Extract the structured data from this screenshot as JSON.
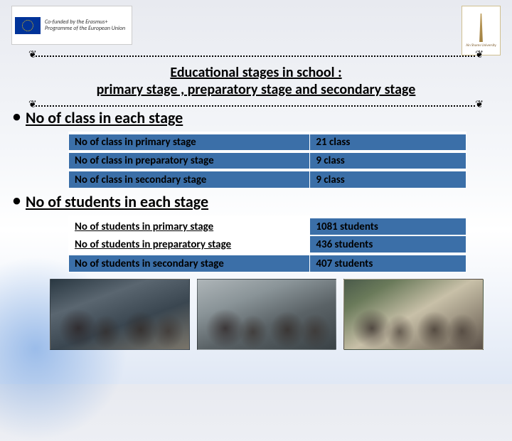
{
  "header": {
    "eu_cofund": "Co-funded by the\nErasmus+ Programme\nof the European Union",
    "uni_name": "Ain Shams University"
  },
  "title": {
    "line1": "Educational stages in school :",
    "line2": "primary stage , preparatory stage and secondary stage"
  },
  "sections": {
    "classes": {
      "heading": "No of class in each stage",
      "rows": [
        {
          "label": "No of class in primary stage",
          "value": "21 class"
        },
        {
          "label": "No of class in preparatory stage",
          "value": "9 class"
        },
        {
          "label": "No of class in secondary stage",
          "value": "9 class"
        }
      ]
    },
    "students": {
      "heading": "No of students in each stage",
      "rows": [
        {
          "label": "No of students in primary stage",
          "value": "1081 students",
          "white": true
        },
        {
          "label": "No of students in preparatory  stage",
          "value": "436 students",
          "white": true,
          "tight": true
        },
        {
          "label": "No of students in secondary stage",
          "value": "407 students"
        }
      ]
    }
  },
  "colors": {
    "table_bg": "#3b6fa8",
    "text": "#000000"
  }
}
